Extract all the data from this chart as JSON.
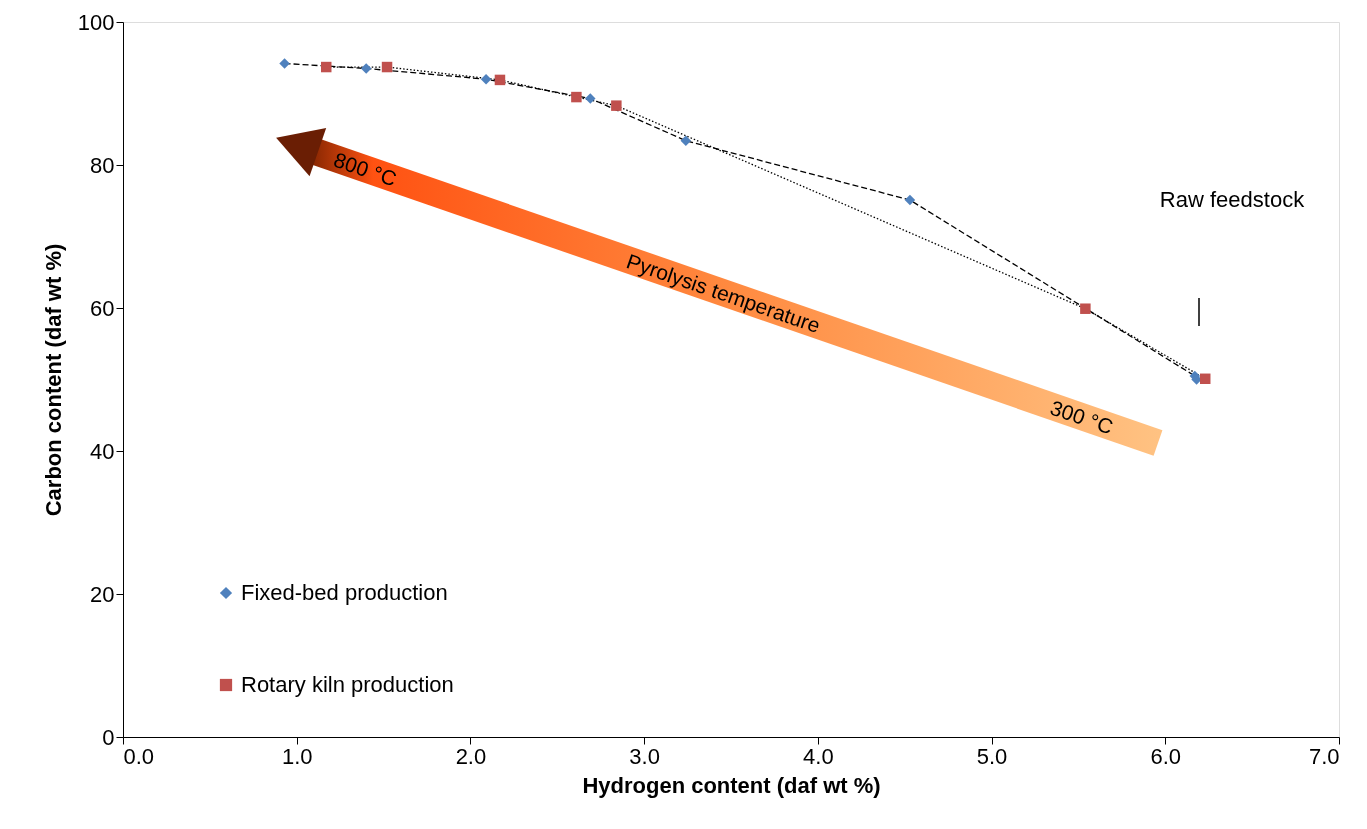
{
  "chart_data": {
    "type": "line",
    "xlabel": "Hydrogen content (daf wt %)",
    "ylabel": "Carbon content (daf wt %)",
    "xlim": [
      0,
      7
    ],
    "ylim": [
      0,
      100
    ],
    "xticks": [
      {
        "value": 0,
        "label": "0.0"
      },
      {
        "value": 1,
        "label": "1.0"
      },
      {
        "value": 2,
        "label": "2.0"
      },
      {
        "value": 3,
        "label": "3.0"
      },
      {
        "value": 4,
        "label": "4.0"
      },
      {
        "value": 5,
        "label": "5.0"
      },
      {
        "value": 6,
        "label": "6.0"
      },
      {
        "value": 7,
        "label": "7.0"
      }
    ],
    "yticks": [
      0,
      20,
      40,
      60,
      80,
      100
    ],
    "grid": false,
    "legend": "bottom left",
    "series": [
      {
        "name": "Fixed-bed production",
        "color": "#4f81bd",
        "marker": "diamond",
        "line_style": "dashed",
        "x": [
          0.93,
          1.4,
          2.09,
          2.69,
          3.24,
          4.53,
          6.17,
          6.18
        ],
        "values": [
          94.2,
          93.5,
          92.0,
          89.3,
          83.4,
          75.1,
          50.5,
          50.0
        ]
      },
      {
        "name": "Rotary kiln production",
        "color": "#c0504d",
        "marker": "square",
        "line_style": "dotted",
        "x": [
          1.17,
          1.52,
          2.17,
          2.61,
          2.84,
          5.54,
          6.23
        ],
        "values": [
          93.7,
          93.7,
          91.9,
          89.5,
          88.3,
          59.9,
          50.1
        ]
      }
    ],
    "annotations": [
      "Raw feedstock",
      "800 °C",
      "Pyrolysis temperature",
      "300 °C"
    ]
  }
}
